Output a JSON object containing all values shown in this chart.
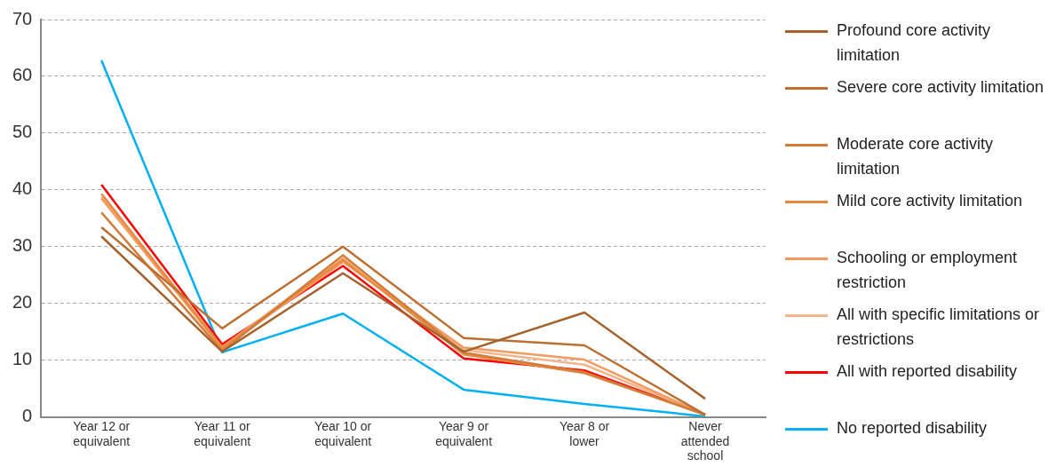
{
  "chart_data": {
    "type": "line",
    "categories": [
      "Year 12 or equivalent",
      "Year 11 or equivalent",
      "Year 10 or equivalent",
      "Year 9 or equivalent",
      "Year 8 or lower",
      "Never attended school"
    ],
    "series": [
      {
        "name": "Profound core activity limitation",
        "color": "#a5622c",
        "values": [
          31.8,
          11.5,
          25.3,
          11.5,
          18.4,
          3.2
        ]
      },
      {
        "name": "Severe core activity limitation",
        "color": "#bd6f32",
        "values": [
          33.4,
          15.6,
          30.0,
          13.9,
          12.6,
          0.4
        ]
      },
      {
        "name": "Moderate core activity limitation",
        "color": "#d07c3a",
        "values": [
          36.0,
          11.6,
          28.5,
          11.3,
          7.9,
          0.4
        ]
      },
      {
        "name": "Mild core activity limitation",
        "color": "#e8893e",
        "values": [
          39.3,
          12.2,
          27.7,
          11.0,
          7.7,
          0.4
        ]
      },
      {
        "name": "Schooling or employment restriction",
        "color": "#f39a60",
        "values": [
          38.5,
          12.0,
          27.3,
          12.2,
          10.1,
          0.4
        ]
      },
      {
        "name": "All with specific limitations or restrictions",
        "color": "#f5b48c",
        "values": [
          38.8,
          12.3,
          28.0,
          11.8,
          9.2,
          0.4
        ]
      },
      {
        "name": "All with reported disability",
        "color": "#ff0000",
        "values": [
          40.9,
          12.8,
          26.6,
          10.3,
          8.2,
          0.4
        ]
      },
      {
        "name": "No reported disability",
        "color": "#00b0f0",
        "values": [
          62.8,
          11.4,
          18.2,
          4.8,
          2.3,
          0.1
        ]
      }
    ],
    "ylim": [
      0,
      70
    ],
    "yticks": [
      0,
      10,
      20,
      30,
      40,
      50,
      60,
      70
    ],
    "grid": "y",
    "legend": "right",
    "marker": "none",
    "line_style": "solid"
  }
}
